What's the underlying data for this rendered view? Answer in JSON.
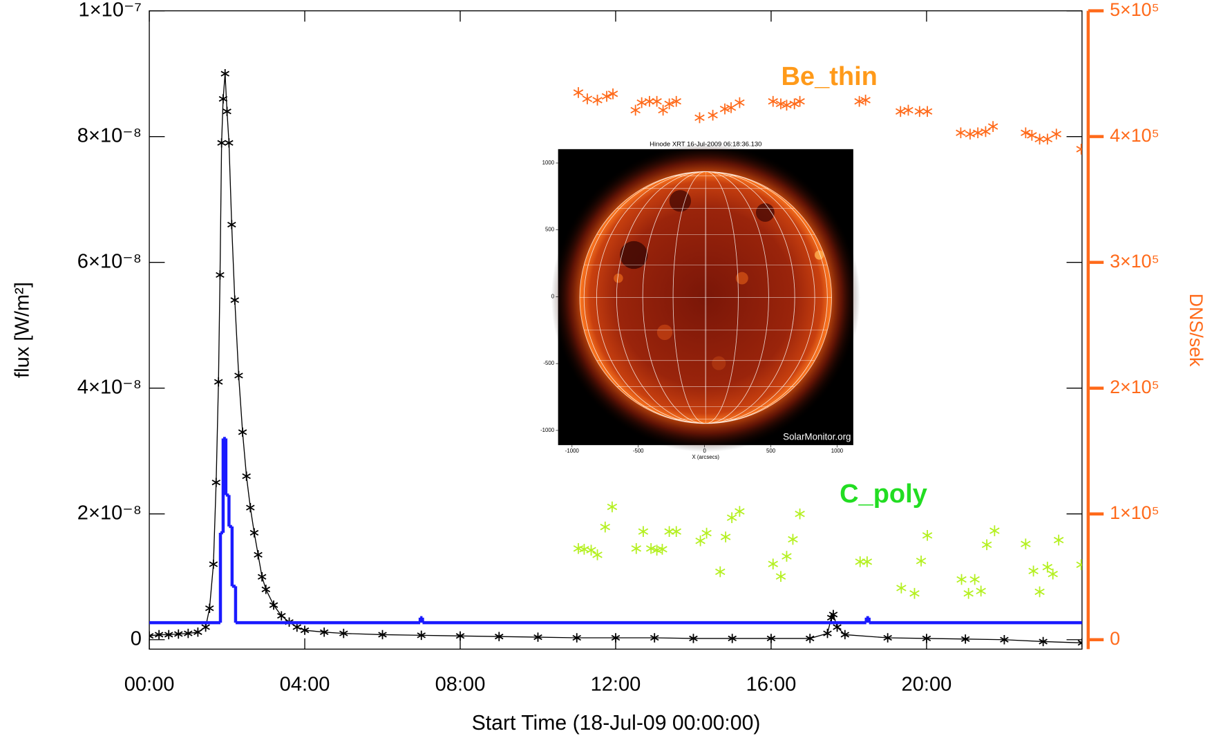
{
  "chart_data": {
    "type": "scatter",
    "xlabel": "Start Time (18-Jul-09 00:00:00)",
    "ylabel": "flux [W/m²]",
    "y2label": "DNS/sek",
    "xlim": [
      0,
      24
    ],
    "xticks": [
      {
        "value": 0,
        "label": "00:00"
      },
      {
        "value": 4,
        "label": "04:00"
      },
      {
        "value": 8,
        "label": "08:00"
      },
      {
        "value": 12,
        "label": "12:00"
      },
      {
        "value": 16,
        "label": "16:00"
      },
      {
        "value": 20,
        "label": "20:00"
      }
    ],
    "ylim": [
      -1.5e-09,
      1e-07
    ],
    "yticks": [
      0,
      {
        "value": 2e-08,
        "label": "2×10⁻⁸"
      },
      {
        "value": 4e-08,
        "label": "4×10⁻⁸"
      },
      {
        "value": 6e-08,
        "label": "6×10⁻⁸"
      },
      {
        "value": 8e-08,
        "label": "8×10⁻⁸"
      },
      {
        "value": 1e-07,
        "label": "1×10⁻⁷"
      }
    ],
    "y2lim": [
      -7500,
      500000
    ],
    "y2ticks": [
      0,
      {
        "value": 100000,
        "label": "1×10⁵"
      },
      {
        "value": 200000,
        "label": "2×10⁵"
      },
      {
        "value": 300000,
        "label": "3×10⁵"
      },
      {
        "value": 400000,
        "label": "4×10⁵"
      },
      {
        "value": 500000,
        "label": "5×10⁵"
      }
    ],
    "y2color": "#ff6a1a",
    "series": [
      {
        "color": "#000000",
        "marker": "asterisk",
        "line": true,
        "x": [
          0.0,
          0.25,
          0.5,
          0.75,
          1.0,
          1.25,
          1.45,
          1.55,
          1.65,
          1.72,
          1.78,
          1.82,
          1.86,
          1.9,
          1.95,
          2.0,
          2.05,
          2.12,
          2.2,
          2.3,
          2.4,
          2.5,
          2.6,
          2.7,
          2.8,
          2.9,
          3.0,
          3.2,
          3.4,
          3.6,
          3.8,
          4.0,
          4.5,
          5.0,
          6.0,
          7.0,
          8.0,
          9.0,
          10.0,
          11.0,
          12.0,
          13.0,
          14.0,
          15.0,
          16.0,
          17.0,
          17.45,
          17.55,
          17.6,
          17.7,
          17.9,
          19.0,
          20.0,
          21.0,
          22.0,
          23.0,
          24.0
        ],
        "values": [
          6e-10,
          8e-10,
          8e-10,
          9e-10,
          1e-09,
          1.2e-09,
          2e-09,
          5e-09,
          1.2e-08,
          2.5e-08,
          4.1e-08,
          5.8e-08,
          7.9e-08,
          8.6e-08,
          9e-08,
          8.4e-08,
          7.9e-08,
          6.6e-08,
          5.4e-08,
          4.2e-08,
          3.3e-08,
          2.6e-08,
          2.1e-08,
          1.7e-08,
          1.35e-08,
          1e-08,
          8e-09,
          5.5e-09,
          3.8e-09,
          2.8e-09,
          2e-09,
          1.5e-09,
          1.2e-09,
          1e-09,
          8e-10,
          7e-10,
          6e-10,
          5e-10,
          4e-10,
          3e-10,
          3e-10,
          3e-10,
          2e-10,
          2e-10,
          2e-10,
          2e-10,
          1e-09,
          3.5e-09,
          4e-09,
          2e-09,
          8e-10,
          3e-10,
          2e-10,
          1e-10,
          0,
          -3e-10,
          -5e-10
        ]
      },
      {
        "color": "#1a1aff",
        "drawstyle": "steps-post",
        "x": [
          0,
          1.83,
          1.9,
          1.97,
          2.05,
          2.13,
          2.22,
          6.97,
          7.03,
          18.45,
          18.52,
          24
        ],
        "values": [
          2.7e-09,
          1.7e-08,
          3.2e-08,
          2.3e-08,
          1.8e-08,
          8.5e-09,
          2.7e-09,
          3.5e-09,
          2.7e-09,
          3.5e-09,
          2.7e-09,
          2.7e-09
        ]
      },
      {
        "name": "Be_thin",
        "color": "#ff6a1a",
        "label_color": "#ff9a1a",
        "marker": "asterisk",
        "axis": "y2",
        "x": [
          11.04,
          11.27,
          11.53,
          11.77,
          11.93,
          12.51,
          12.67,
          12.87,
          13.06,
          13.22,
          13.38,
          13.56,
          14.16,
          14.5,
          14.81,
          14.97,
          15.19,
          16.05,
          16.25,
          16.4,
          16.6,
          16.74,
          18.27,
          18.43,
          19.33,
          19.53,
          19.82,
          20.02,
          20.88,
          21.12,
          21.32,
          21.52,
          21.71,
          22.55,
          22.71,
          22.91,
          23.11,
          23.34,
          23.98
        ],
        "values": [
          435000,
          430000,
          429000,
          432000,
          434000,
          421000,
          427000,
          428000,
          428000,
          421000,
          426000,
          428000,
          415000,
          417000,
          422000,
          423000,
          427000,
          428000,
          426000,
          425000,
          426000,
          428000,
          428000,
          429000,
          420000,
          421000,
          420000,
          420000,
          403000,
          402000,
          403000,
          404000,
          408000,
          403000,
          401000,
          398000,
          398000,
          402000,
          390000
        ]
      },
      {
        "name": "C_poly",
        "color": "#b4f020",
        "label_color": "#22dd22",
        "marker": "asterisk",
        "axis": "y2",
        "x": [
          11.04,
          11.19,
          11.37,
          11.53,
          11.73,
          11.91,
          12.53,
          12.71,
          12.91,
          13.06,
          13.2,
          13.38,
          13.56,
          14.18,
          14.34,
          14.69,
          14.83,
          14.99,
          15.19,
          16.05,
          16.25,
          16.4,
          16.56,
          16.74,
          18.29,
          18.47,
          19.35,
          19.69,
          19.86,
          20.02,
          20.9,
          21.08,
          21.24,
          21.4,
          21.55,
          21.75,
          22.55,
          22.75,
          22.91,
          23.11,
          23.25,
          23.4,
          23.98
        ],
        "values": [
          72500,
          71900,
          71200,
          67500,
          89600,
          105600,
          72500,
          86000,
          72500,
          71200,
          71900,
          86000,
          86000,
          78600,
          84700,
          54000,
          81700,
          97000,
          102000,
          60200,
          50300,
          66300,
          79800,
          100000,
          62000,
          62000,
          41100,
          36800,
          62600,
          82900,
          47900,
          36800,
          47900,
          38700,
          75500,
          86600,
          76100,
          54600,
          38100,
          57700,
          52200,
          79200,
          59600
        ]
      }
    ],
    "inset": {
      "title": "Hinode XRT 16-Jul-2009 06:18:36.130",
      "credit": "SolarMonitor.org",
      "xlabel": "X (arcsecs)",
      "xlim": [
        -1105,
        1122
      ],
      "ylim": [
        -1110,
        1104
      ],
      "xticks": [
        -1000,
        -500,
        0,
        500,
        1000
      ],
      "yticks": [
        -1000,
        -500,
        0,
        500,
        1000
      ]
    }
  }
}
